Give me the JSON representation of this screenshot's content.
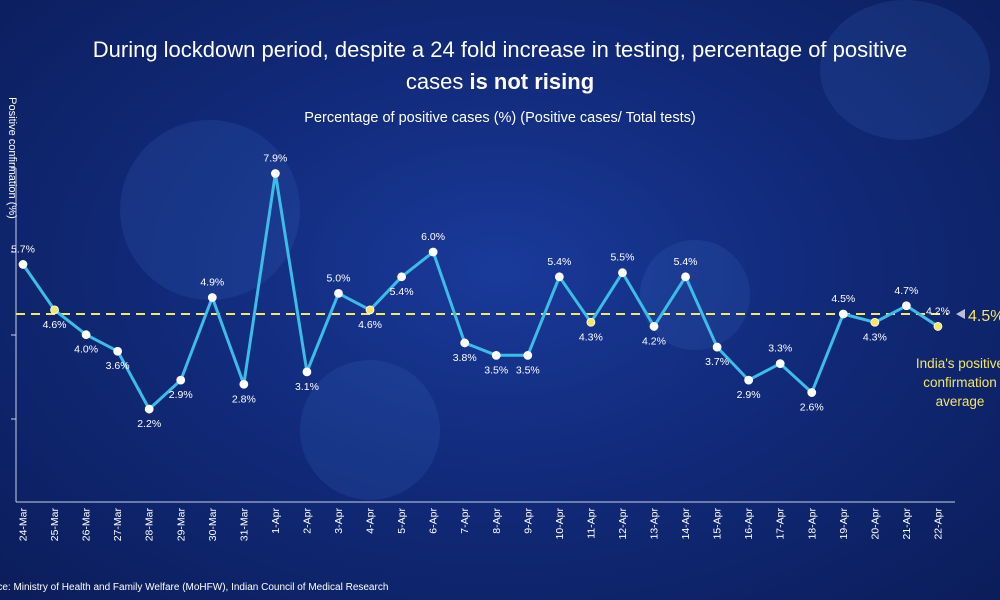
{
  "title": {
    "line1": "During lockdown period, despite a 24 fold increase in testing, percentage of positive",
    "line2_normal": "cases ",
    "line2_bold": "is not rising"
  },
  "subtitle": "Percentage of positive cases (%) (Positive cases/ Total tests)",
  "ylabel": "Positive confirmation (%)",
  "source": "rce: Ministry of Health and Family Welfare (MoHFW), Indian Council of Medical Research",
  "colors": {
    "line": "#3cbde8",
    "marker": "#ffffff",
    "reference": "#f5e663",
    "axis": "#c8d0e8"
  },
  "chart_data": {
    "type": "line",
    "title": "Percentage of positive cases (%) (Positive cases/ Total tests)",
    "ylabel": "Positive confirmation (%)",
    "xlabel": "",
    "categories": [
      "24-Mar",
      "25-Mar",
      "26-Mar",
      "27-Mar",
      "28-Mar",
      "29-Mar",
      "30-Mar",
      "31-Mar",
      "1-Apr",
      "2-Apr",
      "3-Apr",
      "4-Apr",
      "5-Apr",
      "6-Apr",
      "7-Apr",
      "8-Apr",
      "9-Apr",
      "10-Apr",
      "11-Apr",
      "12-Apr",
      "13-Apr",
      "14-Apr",
      "15-Apr",
      "16-Apr",
      "17-Apr",
      "18-Apr",
      "19-Apr",
      "20-Apr",
      "21-Apr",
      "22-Apr"
    ],
    "series": [
      {
        "values": [
          5.7,
          4.6,
          4.0,
          3.6,
          2.2,
          2.9,
          4.9,
          2.8,
          7.9,
          3.1,
          5.0,
          4.6,
          5.4,
          6.0,
          3.8,
          3.5,
          3.5,
          5.4,
          4.3,
          5.5,
          4.2,
          5.4,
          3.7,
          2.9,
          3.3,
          2.6,
          4.5,
          4.3,
          4.7,
          4.2
        ],
        "labels": [
          "5.7%",
          "4.6%",
          "4.0%",
          "3.6%",
          "2.2%",
          "2.9%",
          "4.9%",
          "2.8%",
          "7.9%",
          "3.1%",
          "5.0%",
          "4.6%",
          "5.4%",
          "6.0%",
          "3.8%",
          "3.5%",
          "3.5%",
          "5.4%",
          "4.3%",
          "5.5%",
          "4.2%",
          "5.4%",
          "3.7%",
          "2.9%",
          "3.3%",
          "2.6%",
          "4.5%",
          "4.3%",
          "4.7%",
          "4.2%"
        ]
      }
    ],
    "reference_line": {
      "value": 4.5,
      "value_label": "4.5%",
      "label": [
        "India's positive",
        "confirmation",
        "average"
      ]
    },
    "ylim": [
      0,
      8
    ],
    "grid": false,
    "legend": "none"
  }
}
